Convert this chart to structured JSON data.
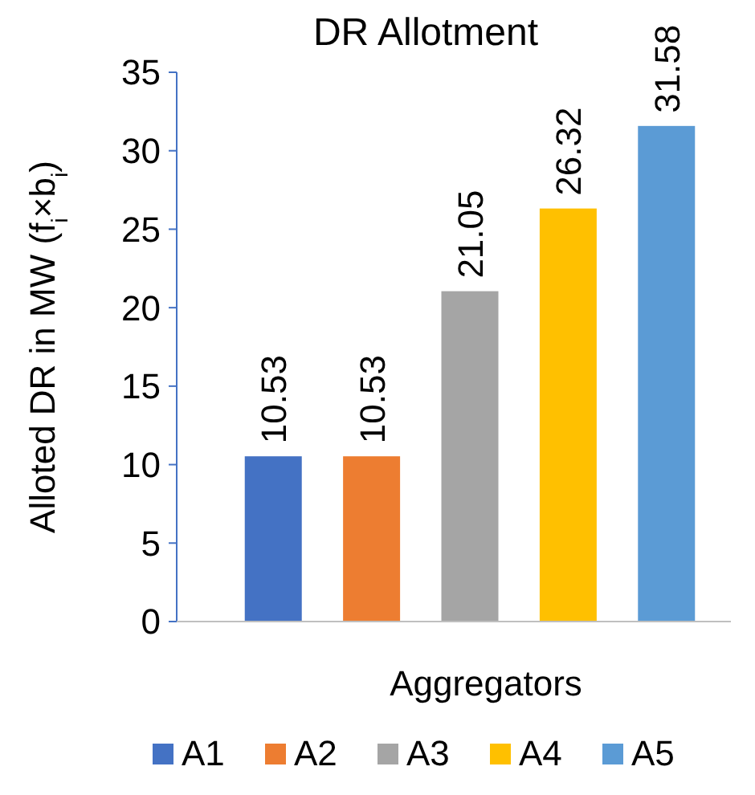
{
  "chart_data": {
    "type": "bar",
    "title": "DR Allotment",
    "xlabel": "Aggregators",
    "ylabel": "Alloted DR in MW (f$_{i}$×b$_{i}$)",
    "categories": [
      null
    ],
    "series": [
      {
        "name": "A1",
        "color": "#4472c4",
        "values": [
          10.53
        ]
      },
      {
        "name": "A2",
        "color": "#ed7d31",
        "values": [
          10.53
        ]
      },
      {
        "name": "A3",
        "color": "#a5a5a5",
        "values": [
          21.05
        ]
      },
      {
        "name": "A4",
        "color": "#ffc000",
        "values": [
          26.32
        ]
      },
      {
        "name": "A5",
        "color": "#5b9bd5",
        "values": [
          31.58
        ]
      }
    ],
    "ylim": [
      0,
      35
    ],
    "yticks": [
      0,
      5,
      10,
      15,
      20,
      25,
      30,
      35
    ],
    "grid": false,
    "data_labels": true,
    "legend": "bottom"
  }
}
